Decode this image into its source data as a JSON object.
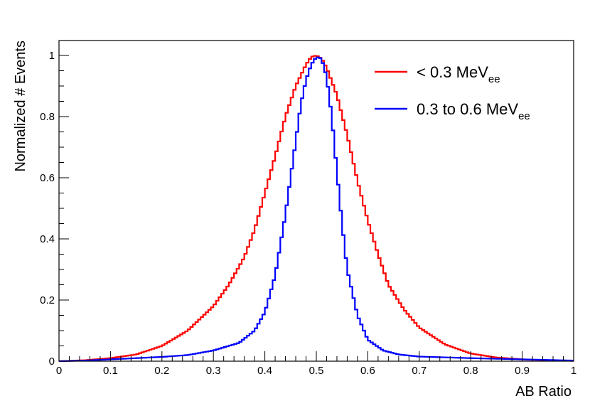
{
  "chart_data": {
    "type": "line",
    "xlabel": "AB Ratio",
    "ylabel": "Normalized # Events",
    "xlim": [
      0,
      1
    ],
    "ylim": [
      0,
      1.0
    ],
    "x_ticks": [
      "0",
      "0.1",
      "0.2",
      "0.3",
      "0.4",
      "0.5",
      "0.6",
      "0.7",
      "0.8",
      "0.9",
      "1"
    ],
    "y_ticks": [
      "0",
      "0.2",
      "0.4",
      "0.6",
      "0.8",
      "1"
    ],
    "grid": false,
    "legend_position": "top-right",
    "step": true,
    "series": [
      {
        "name": "< 0.3 MeV",
        "name_main": "< 0.3 MeV",
        "name_sub": "ee",
        "color": "#ff0000",
        "x": [
          0.0,
          0.05,
          0.1,
          0.15,
          0.2,
          0.25,
          0.3,
          0.33,
          0.36,
          0.38,
          0.4,
          0.42,
          0.44,
          0.46,
          0.48,
          0.49,
          0.5,
          0.51,
          0.52,
          0.54,
          0.56,
          0.58,
          0.6,
          0.62,
          0.64,
          0.67,
          0.7,
          0.75,
          0.8,
          0.85,
          0.9,
          0.95,
          1.0
        ],
        "y": [
          0.0,
          0.003,
          0.01,
          0.022,
          0.05,
          0.1,
          0.18,
          0.25,
          0.34,
          0.43,
          0.55,
          0.67,
          0.8,
          0.9,
          0.97,
          0.995,
          1.0,
          0.99,
          0.96,
          0.87,
          0.74,
          0.59,
          0.46,
          0.35,
          0.25,
          0.17,
          0.11,
          0.055,
          0.025,
          0.012,
          0.006,
          0.003,
          0.001
        ]
      },
      {
        "name": "0.3 to 0.6 MeV",
        "name_main": "0.3 to 0.6 MeV",
        "name_sub": "ee",
        "color": "#0000ff",
        "x": [
          0.0,
          0.05,
          0.1,
          0.15,
          0.2,
          0.25,
          0.3,
          0.35,
          0.38,
          0.4,
          0.42,
          0.44,
          0.46,
          0.47,
          0.48,
          0.49,
          0.5,
          0.51,
          0.52,
          0.53,
          0.54,
          0.55,
          0.56,
          0.58,
          0.6,
          0.63,
          0.66,
          0.7,
          0.8,
          0.9,
          1.0
        ],
        "y": [
          0.0,
          0.002,
          0.006,
          0.01,
          0.014,
          0.02,
          0.035,
          0.06,
          0.1,
          0.16,
          0.28,
          0.48,
          0.72,
          0.84,
          0.92,
          0.97,
          0.995,
          0.99,
          0.93,
          0.8,
          0.62,
          0.45,
          0.3,
          0.15,
          0.07,
          0.035,
          0.022,
          0.015,
          0.01,
          0.006,
          0.002
        ]
      }
    ]
  }
}
